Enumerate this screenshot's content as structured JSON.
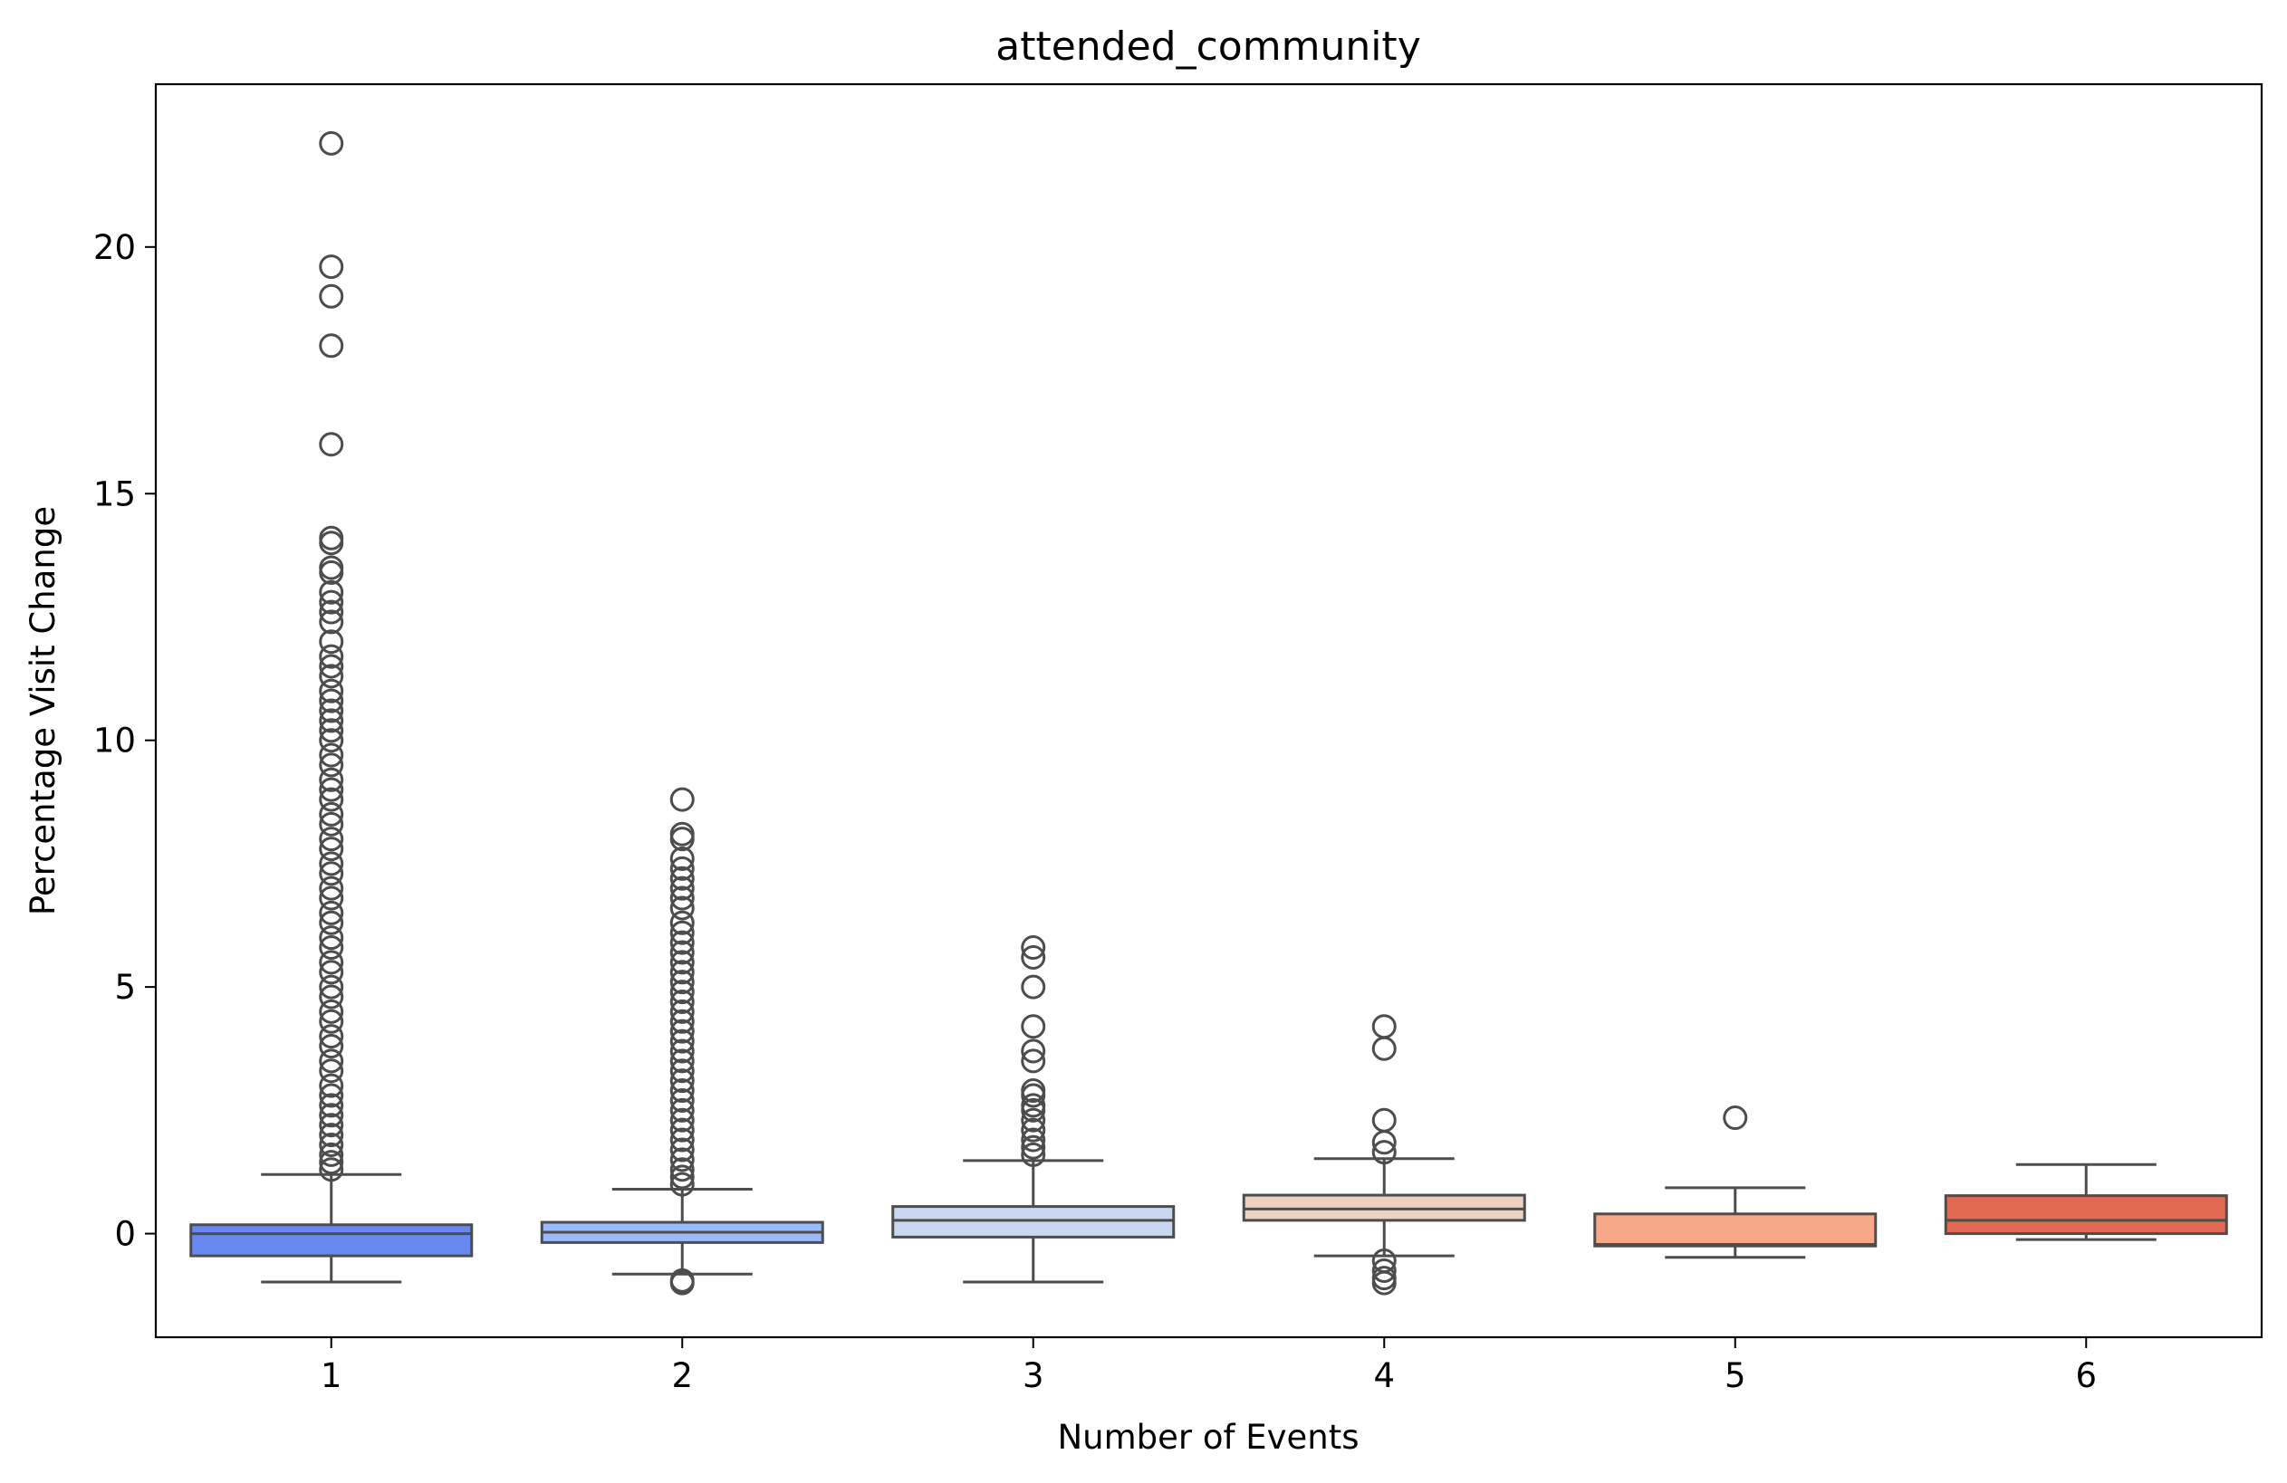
{
  "chart_data": {
    "type": "box",
    "title": "attended_community",
    "xlabel": "Number of Events",
    "ylabel": "Percentage Visit Change",
    "categories": [
      "1",
      "2",
      "3",
      "4",
      "5",
      "6"
    ],
    "ylim": [
      -2.1,
      23.3
    ],
    "yticks": [
      0,
      5,
      10,
      15,
      20
    ],
    "grid": false,
    "colors": [
      "#6788ee",
      "#9abbff",
      "#c9d7f0",
      "#edd1c2",
      "#f7a889",
      "#e26952"
    ],
    "line_color": "#4d4d4d",
    "boxes": [
      {
        "category": "1",
        "whisker_low": -0.98,
        "q1": -0.45,
        "median": 0.0,
        "q3": 0.18,
        "whisker_high": 1.2,
        "outliers": [
          22.1,
          19.6,
          19.0,
          18.0,
          16.0,
          14.1,
          14.0,
          13.5,
          13.4,
          13.0,
          12.8,
          12.6,
          12.4,
          12.0,
          11.7,
          11.5,
          11.3,
          11.0,
          10.8,
          10.6,
          10.4,
          10.2,
          10.0,
          9.7,
          9.5,
          9.2,
          9.0,
          8.8,
          8.5,
          8.3,
          8.0,
          7.8,
          7.5,
          7.3,
          7.0,
          6.8,
          6.5,
          6.3,
          6.0,
          5.8,
          5.5,
          5.3,
          5.0,
          4.8,
          4.5,
          4.3,
          4.0,
          3.8,
          3.5,
          3.3,
          3.0,
          2.8,
          2.6,
          2.4,
          2.2,
          2.0,
          1.8,
          1.6,
          1.45,
          1.3
        ]
      },
      {
        "category": "2",
        "whisker_low": -0.82,
        "q1": -0.18,
        "median": 0.03,
        "q3": 0.23,
        "whisker_high": 0.9,
        "outliers": [
          8.8,
          8.1,
          8.0,
          7.6,
          7.4,
          7.2,
          7.0,
          6.8,
          6.6,
          6.3,
          6.1,
          5.9,
          5.7,
          5.5,
          5.3,
          5.1,
          4.9,
          4.7,
          4.5,
          4.3,
          4.1,
          3.9,
          3.7,
          3.5,
          3.3,
          3.1,
          2.9,
          2.7,
          2.5,
          2.3,
          2.1,
          1.9,
          1.7,
          1.5,
          1.3,
          1.15,
          1.0,
          -0.95,
          -1.0
        ]
      },
      {
        "category": "3",
        "whisker_low": -0.98,
        "q1": -0.07,
        "median": 0.27,
        "q3": 0.55,
        "whisker_high": 1.48,
        "outliers": [
          5.8,
          5.6,
          5.0,
          4.2,
          3.7,
          3.5,
          2.9,
          2.8,
          2.6,
          2.5,
          2.3,
          2.1,
          1.9,
          1.75,
          1.6
        ]
      },
      {
        "category": "4",
        "whisker_low": -0.45,
        "q1": 0.27,
        "median": 0.5,
        "q3": 0.78,
        "whisker_high": 1.52,
        "outliers": [
          4.2,
          3.75,
          2.3,
          1.85,
          1.65,
          -0.55,
          -0.75,
          -0.9,
          -1.0
        ]
      },
      {
        "category": "5",
        "whisker_low": -0.48,
        "q1": -0.25,
        "median": -0.22,
        "q3": 0.4,
        "whisker_high": 0.93,
        "outliers": [
          2.35
        ]
      },
      {
        "category": "6",
        "whisker_low": -0.12,
        "q1": 0.0,
        "median": 0.27,
        "q3": 0.77,
        "whisker_high": 1.4,
        "outliers": []
      }
    ]
  }
}
